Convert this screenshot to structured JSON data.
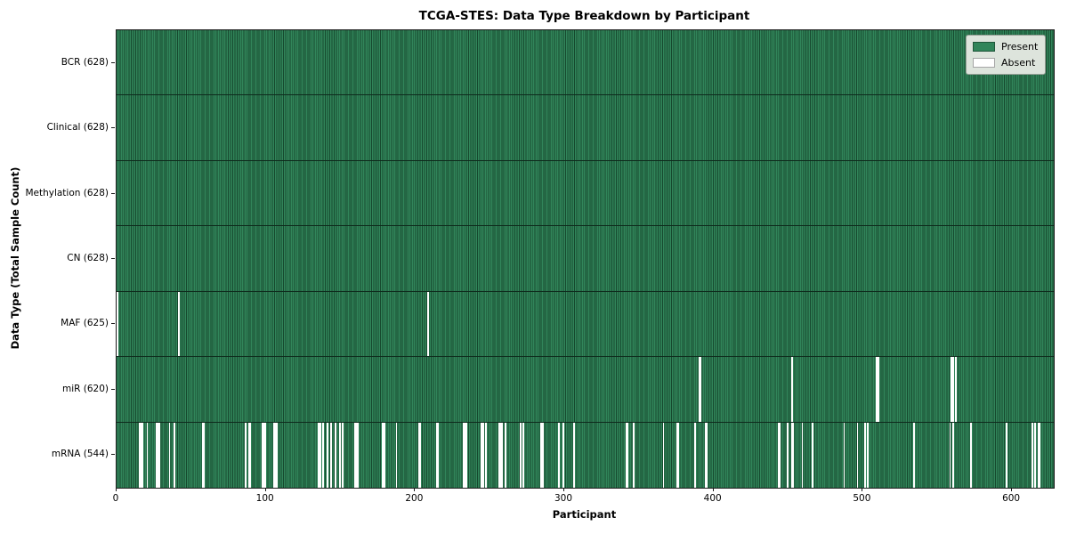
{
  "colors": {
    "present": "#31855a",
    "present_edge": "#16492e",
    "absent": "#ffffff",
    "legend_bg": "#dde4dc",
    "spine": "#1a1a1a"
  },
  "legend": {
    "present_label": "Present",
    "absent_label": "Absent"
  },
  "chart_data": {
    "type": "heatmap",
    "title": "TCGA-STES: Data Type Breakdown by Participant",
    "xlabel": "Participant",
    "ylabel": "Data Type (Total Sample Count)",
    "xlim": [
      0,
      628
    ],
    "x_ticks": [
      0,
      100,
      200,
      300,
      400,
      500,
      600
    ],
    "grid": false,
    "legend_position": "upper right",
    "legend_entries": [
      "Present",
      "Absent"
    ],
    "total_participants": 628,
    "rows": [
      {
        "name": "BCR",
        "label": "BCR (628)",
        "present_count": 628,
        "absent_participants": []
      },
      {
        "name": "Clinical",
        "label": "Clinical (628)",
        "present_count": 628,
        "absent_participants": []
      },
      {
        "name": "Methylation",
        "label": "Methylation (628)",
        "present_count": 628,
        "absent_participants": []
      },
      {
        "name": "CN",
        "label": "CN (628)",
        "present_count": 628,
        "absent_participants": []
      },
      {
        "name": "MAF",
        "label": "MAF (625)",
        "present_count": 625,
        "absent_participants": [
          0,
          41,
          208
        ]
      },
      {
        "name": "miR",
        "label": "miR (620)",
        "present_count": 620,
        "absent_participants": [
          390,
          391,
          452,
          509,
          510,
          559,
          560,
          562
        ]
      },
      {
        "name": "mRNA",
        "label": "mRNA (544)",
        "present_count": 544,
        "absent_participants": [
          15,
          16,
          17,
          20,
          26,
          27,
          28,
          35,
          38,
          57,
          58,
          86,
          88,
          89,
          97,
          98,
          99,
          105,
          106,
          107,
          135,
          136,
          138,
          141,
          143,
          146,
          149,
          151,
          159,
          160,
          161,
          178,
          179,
          187,
          202,
          203,
          214,
          215,
          232,
          233,
          234,
          244,
          245,
          247,
          256,
          257,
          258,
          260,
          270,
          272,
          284,
          285,
          296,
          299,
          306,
          341,
          342,
          346,
          366,
          375,
          376,
          387,
          394,
          395,
          443,
          444,
          449,
          452,
          453,
          459,
          466,
          487,
          496,
          501,
          503,
          534,
          558,
          560,
          572,
          596,
          613,
          615,
          617,
          618
        ]
      }
    ]
  }
}
